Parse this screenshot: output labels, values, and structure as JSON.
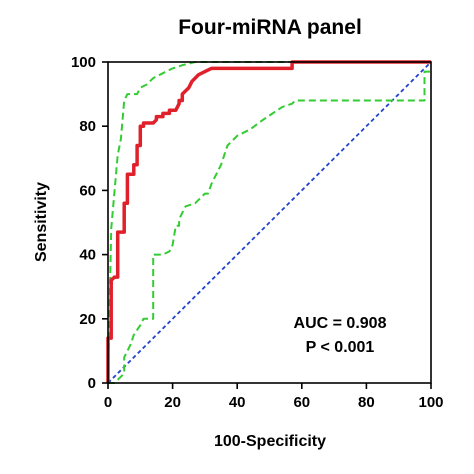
{
  "chart_data": {
    "type": "line",
    "title": "Four-miRNA panel",
    "xlabel": "100-Specificity",
    "ylabel": "Sensitivity",
    "xlim": [
      0,
      100
    ],
    "ylim": [
      0,
      100
    ],
    "xticks": [
      0,
      20,
      40,
      60,
      80,
      100
    ],
    "yticks": [
      0,
      20,
      40,
      60,
      80,
      100
    ],
    "grid": false,
    "colors": {
      "roc": "#e0202a",
      "ci": "#33cc33",
      "reference": "#2244cc",
      "axis": "#000000"
    },
    "series": [
      {
        "role": "roc",
        "x": [
          0,
          0,
          1,
          1,
          2,
          3,
          3,
          5,
          5,
          6,
          6,
          8,
          8,
          9,
          9,
          10,
          10,
          11,
          11,
          14,
          15,
          15,
          17,
          17,
          19,
          19,
          21,
          22,
          22,
          23,
          23,
          25,
          26,
          27,
          28,
          30,
          32,
          34,
          57,
          57,
          100
        ],
        "y": [
          0,
          14,
          14,
          32,
          33,
          33,
          47,
          47,
          56,
          56,
          65,
          65,
          68,
          68,
          74,
          74,
          80,
          80,
          81,
          81,
          82,
          83,
          83,
          84,
          84,
          85,
          85,
          87,
          88,
          88,
          90,
          92,
          94,
          95,
          96,
          97,
          98,
          98,
          98,
          100,
          100
        ]
      },
      {
        "role": "ci-upper",
        "x": [
          0,
          1,
          3,
          4,
          5,
          6,
          9,
          10,
          12,
          14,
          16,
          18,
          20,
          23,
          27,
          31,
          36,
          40,
          50,
          60,
          100
        ],
        "y": [
          0,
          48,
          71,
          76,
          88,
          90,
          90,
          92,
          93,
          95,
          96,
          97,
          98,
          99,
          100,
          100,
          100,
          100,
          100,
          100,
          100
        ]
      },
      {
        "role": "ci-lower",
        "x": [
          0,
          2,
          3,
          3,
          5,
          5,
          6,
          7,
          8,
          10,
          11,
          14,
          14,
          17,
          19,
          20,
          21,
          22,
          22,
          24,
          27,
          29,
          30,
          31,
          32,
          35,
          37,
          40,
          44,
          48,
          54,
          57,
          58,
          98,
          98,
          100
        ],
        "y": [
          0,
          0,
          1,
          1,
          3,
          8,
          10,
          12,
          15,
          18,
          20,
          20,
          40,
          40,
          41,
          43,
          49,
          49,
          51,
          55,
          56,
          58,
          59,
          59,
          62,
          68,
          74,
          77,
          79,
          82,
          86,
          87,
          88,
          88,
          97,
          97
        ]
      },
      {
        "role": "reference",
        "x": [
          0,
          100
        ],
        "y": [
          0,
          100
        ]
      }
    ],
    "annotations": {
      "auc": "AUC = 0.908",
      "p": "P < 0.001"
    }
  }
}
